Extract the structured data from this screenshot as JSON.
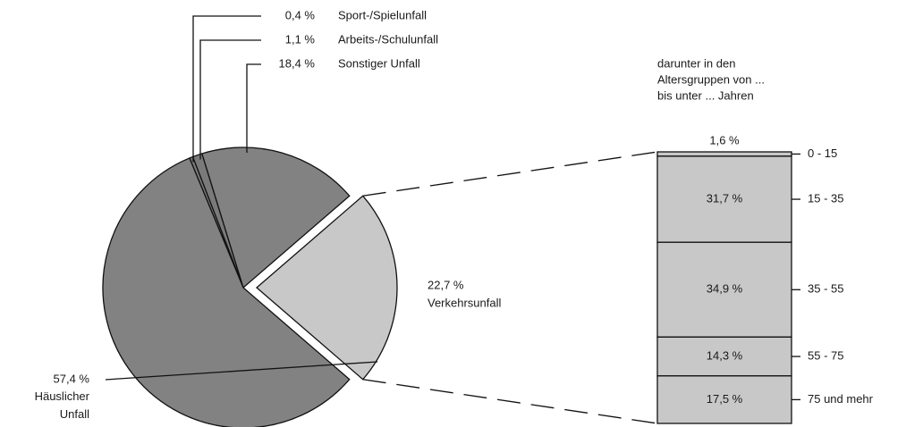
{
  "chart_data": [
    {
      "type": "pie",
      "categories": [
        "Sport-/Spielunfall",
        "Arbeits-/Schulunfall",
        "Sonstiger Unfall",
        "Verkehrsunfall",
        "Häuslicher Unfall"
      ],
      "values": [
        0.4,
        1.1,
        18.4,
        22.7,
        57.4
      ],
      "value_labels": [
        "0,4 %",
        "1,1 %",
        "18,4 %",
        "22,7 %",
        "57,4 %"
      ],
      "colors": [
        "#7a7a7a",
        "#7a7a7a",
        "#828282",
        "#c8c8c8",
        "#828282"
      ],
      "explode": [
        false,
        false,
        false,
        true,
        false
      ]
    },
    {
      "type": "bar",
      "stacked": true,
      "title_lines": [
        "darunter in den",
        "Altersgruppen von ...",
        "bis unter ... Jahren"
      ],
      "categories": [
        "0 - 15",
        "15 - 35",
        "35 - 55",
        "55 - 75",
        "75 und mehr"
      ],
      "values": [
        1.6,
        31.7,
        34.9,
        14.3,
        17.5
      ],
      "value_labels": [
        "1,6 %",
        "31,7 %",
        "34,9 %",
        "14,3 %",
        "17,5 %"
      ],
      "color": "#c8c8c8"
    }
  ]
}
